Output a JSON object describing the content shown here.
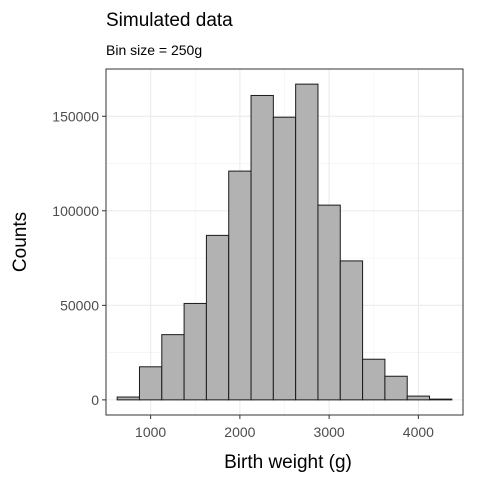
{
  "chart_data": {
    "type": "bar",
    "title": "Simulated data",
    "subtitle": "Bin size = 250g",
    "xlabel": "Birth weight (g)",
    "ylabel": "Counts",
    "bin_width": 250,
    "bins": [
      {
        "x": 750,
        "count": 1500
      },
      {
        "x": 1000,
        "count": 17500
      },
      {
        "x": 1250,
        "count": 34500
      },
      {
        "x": 1500,
        "count": 51000
      },
      {
        "x": 1750,
        "count": 87000
      },
      {
        "x": 2000,
        "count": 121000
      },
      {
        "x": 2250,
        "count": 161000
      },
      {
        "x": 2500,
        "count": 149500
      },
      {
        "x": 2750,
        "count": 167000
      },
      {
        "x": 3000,
        "count": 103000
      },
      {
        "x": 3250,
        "count": 73500
      },
      {
        "x": 3500,
        "count": 21500
      },
      {
        "x": 3750,
        "count": 12500
      },
      {
        "x": 4000,
        "count": 2000
      },
      {
        "x": 4250,
        "count": 400
      }
    ],
    "xlim": [
      500,
      4500
    ],
    "ylim": [
      -8000,
      175000
    ],
    "x_ticks": [
      1000,
      2000,
      3000,
      4000
    ],
    "x_tick_labels": [
      "1000",
      "2000",
      "3000",
      "4000"
    ],
    "y_ticks": [
      0,
      50000,
      100000,
      150000
    ],
    "y_tick_labels": [
      "0",
      "50000",
      "100000",
      "150000"
    ],
    "grid": true,
    "bar_color": "#b2b2b2",
    "bar_outline_color": "#1a1a1a"
  }
}
